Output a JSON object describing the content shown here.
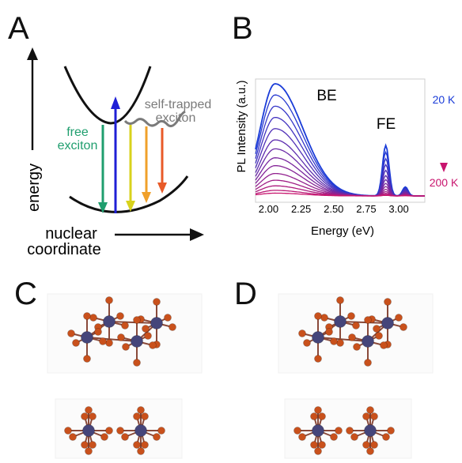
{
  "panels": {
    "a": {
      "letter": "A"
    },
    "b": {
      "letter": "B"
    },
    "c": {
      "letter": "C"
    },
    "d": {
      "letter": "D"
    }
  },
  "panel_a": {
    "energy_axis_label": "energy",
    "coordinate_axis_label_line1": "nuclear",
    "coordinate_axis_label_line2": "coordinate",
    "free_exciton_line1": "free",
    "free_exciton_line2": "exciton",
    "self_trapped_line1": "self-trapped",
    "self_trapped_line2": "exciton",
    "colors": {
      "free": "#1f9e6e",
      "excitation": "#1f1fd6",
      "yellow": "#d8d21c",
      "orange": "#f0a02a",
      "red": "#e85a28",
      "self_trapped": "#7a7a7a"
    }
  },
  "chart_data": {
    "type": "line",
    "ylabel": "PL Intensity (a.u.)",
    "xlabel": "Energy (eV)",
    "xlim": [
      1.9,
      3.2
    ],
    "x_ticks": [
      "2.00",
      "2.25",
      "2.50",
      "2.75",
      "3.00"
    ],
    "annotations": {
      "be": "BE",
      "fe": "FE"
    },
    "temperature_scale": {
      "top": "20 K",
      "bottom": "200 K",
      "top_color": "#1a3cd8",
      "bottom_color": "#c8156e"
    },
    "series_relative_amplitudes": [
      1.0,
      0.9,
      0.8,
      0.7,
      0.6,
      0.5,
      0.42,
      0.34,
      0.27,
      0.2,
      0.14,
      0.09,
      0.05,
      0.025
    ]
  },
  "panel_c": {
    "atom_colors": {
      "metal": "#45457a",
      "halide": "#c9511c"
    }
  },
  "panel_d": {
    "atom_colors": {
      "metal": "#45457a",
      "halide": "#c9511c"
    }
  }
}
